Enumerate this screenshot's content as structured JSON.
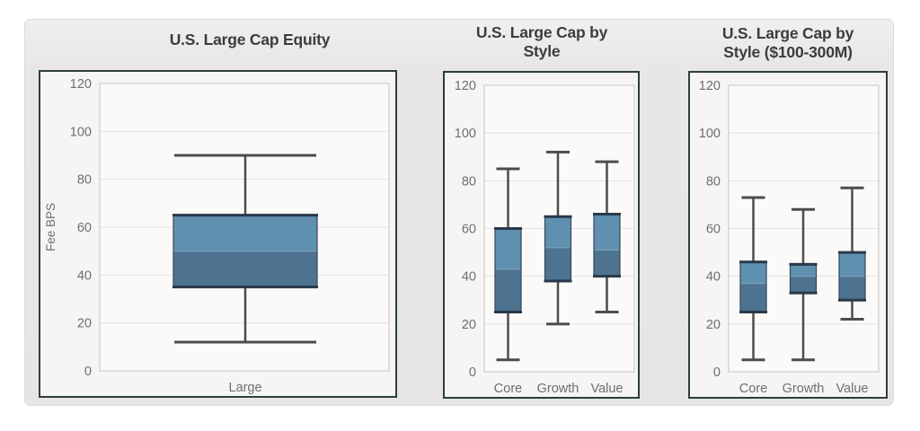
{
  "figure": {
    "background": "#ffffff",
    "canvas_bg": "#e7e6e5"
  },
  "colors": {
    "box_upper": "#6090af",
    "box_lower": "#4e7390",
    "box_edge": "#283949",
    "box_side": "#33485c",
    "median": "#7ba0b9",
    "whisker": "#4c4c4c",
    "grid": "#e3e2e1",
    "plot_border": "#c6c5c4",
    "plot_bg": "#fbfaf9",
    "panel_border": "#2d3e38",
    "panel_bg": "#f6f5f4",
    "title_color": "#3d3c3b",
    "tick_color": "#6f6e6d"
  },
  "chart_data": [
    {
      "type": "box",
      "title": "U.S. Large Cap Equity",
      "title_lines": [
        "U.S. Large Cap Equity"
      ],
      "ylabel": "Fee BPS",
      "ylim": [
        0,
        120
      ],
      "yticks": [
        0,
        20,
        40,
        60,
        80,
        100,
        120
      ],
      "grid": true,
      "legend": "none",
      "categories": [
        "Large"
      ],
      "series": [
        {
          "category": "Large",
          "low": 12,
          "q1": 35,
          "median": 50,
          "q3": 65,
          "high": 90
        }
      ]
    },
    {
      "type": "box",
      "title": "U.S. Large Cap by Style",
      "title_lines": [
        "U.S. Large Cap by",
        "Style"
      ],
      "ylabel": "",
      "ylim": [
        0,
        120
      ],
      "yticks": [
        0,
        20,
        40,
        60,
        80,
        100,
        120
      ],
      "grid": true,
      "legend": "none",
      "categories": [
        "Core",
        "Growth",
        "Value"
      ],
      "series": [
        {
          "category": "Core",
          "low": 5,
          "q1": 25,
          "median": 43,
          "q3": 60,
          "high": 85
        },
        {
          "category": "Growth",
          "low": 20,
          "q1": 38,
          "median": 52,
          "q3": 65,
          "high": 92
        },
        {
          "category": "Value",
          "low": 25,
          "q1": 40,
          "median": 51,
          "q3": 66,
          "high": 88
        }
      ]
    },
    {
      "type": "box",
      "title": "U.S. Large Cap by Style ($100-300M)",
      "title_lines": [
        "U.S. Large Cap by",
        "Style ($100-300M)"
      ],
      "ylabel": "",
      "ylim": [
        0,
        120
      ],
      "yticks": [
        0,
        20,
        40,
        60,
        80,
        100,
        120
      ],
      "grid": true,
      "legend": "none",
      "categories": [
        "Core",
        "Growth",
        "Value"
      ],
      "series": [
        {
          "category": "Core",
          "low": 5,
          "q1": 25,
          "median": 37,
          "q3": 46,
          "high": 73
        },
        {
          "category": "Growth",
          "low": 5,
          "q1": 33,
          "median": 40,
          "q3": 45,
          "high": 68
        },
        {
          "category": "Value",
          "low": 22,
          "q1": 30,
          "median": 40,
          "q3": 50,
          "high": 77
        }
      ]
    }
  ]
}
